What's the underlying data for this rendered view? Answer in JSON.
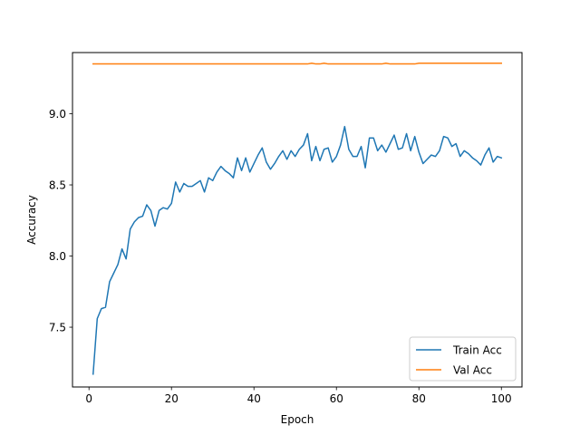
{
  "chart_data": {
    "type": "line",
    "title": "",
    "xlabel": "Epoch",
    "ylabel": "Accuracy",
    "xlim": [
      -4,
      105
    ],
    "ylim": [
      7.08,
      9.43
    ],
    "xticks": [
      0,
      20,
      40,
      60,
      80,
      100
    ],
    "yticks": [
      7.5,
      8.0,
      8.5,
      9.0
    ],
    "ytick_labels": [
      "7.5",
      "8.0",
      "8.5",
      "9.0"
    ],
    "grid": false,
    "legend_position": "lower-right",
    "x": [
      1,
      2,
      3,
      4,
      5,
      6,
      7,
      8,
      9,
      10,
      11,
      12,
      13,
      14,
      15,
      16,
      17,
      18,
      19,
      20,
      21,
      22,
      23,
      24,
      25,
      26,
      27,
      28,
      29,
      30,
      31,
      32,
      33,
      34,
      35,
      36,
      37,
      38,
      39,
      40,
      41,
      42,
      43,
      44,
      45,
      46,
      47,
      48,
      49,
      50,
      51,
      52,
      53,
      54,
      55,
      56,
      57,
      58,
      59,
      60,
      61,
      62,
      63,
      64,
      65,
      66,
      67,
      68,
      69,
      70,
      71,
      72,
      73,
      74,
      75,
      76,
      77,
      78,
      79,
      80,
      81,
      82,
      83,
      84,
      85,
      86,
      87,
      88,
      89,
      90,
      91,
      92,
      93,
      94,
      95,
      96,
      97,
      98,
      99,
      100
    ],
    "series": [
      {
        "name": "Train Acc",
        "color": "#1f77b4",
        "values": [
          7.17,
          7.56,
          7.63,
          7.64,
          7.82,
          7.88,
          7.94,
          8.05,
          7.98,
          8.19,
          8.24,
          8.27,
          8.28,
          8.36,
          8.32,
          8.21,
          8.32,
          8.34,
          8.33,
          8.37,
          8.52,
          8.45,
          8.51,
          8.49,
          8.49,
          8.51,
          8.53,
          8.45,
          8.55,
          8.53,
          8.59,
          8.63,
          8.6,
          8.58,
          8.55,
          8.69,
          8.6,
          8.69,
          8.59,
          8.65,
          8.71,
          8.76,
          8.66,
          8.61,
          8.65,
          8.7,
          8.74,
          8.68,
          8.74,
          8.7,
          8.75,
          8.78,
          8.86,
          8.67,
          8.77,
          8.67,
          8.75,
          8.76,
          8.66,
          8.7,
          8.78,
          8.91,
          8.75,
          8.7,
          8.7,
          8.77,
          8.62,
          8.83,
          8.83,
          8.74,
          8.78,
          8.73,
          8.79,
          8.85,
          8.75,
          8.76,
          8.86,
          8.74,
          8.84,
          8.73,
          8.65,
          8.68,
          8.71,
          8.7,
          8.74,
          8.84,
          8.83,
          8.77,
          8.79,
          8.7,
          8.74,
          8.72,
          8.69,
          8.67,
          8.64,
          8.71,
          8.76,
          8.66,
          8.7,
          8.69
        ]
      },
      {
        "name": "Val Acc",
        "color": "#ff7f0e",
        "values": [
          9.35,
          9.35,
          9.35,
          9.35,
          9.35,
          9.35,
          9.35,
          9.35,
          9.35,
          9.35,
          9.35,
          9.35,
          9.35,
          9.35,
          9.35,
          9.35,
          9.35,
          9.35,
          9.35,
          9.35,
          9.35,
          9.35,
          9.35,
          9.35,
          9.35,
          9.35,
          9.35,
          9.35,
          9.35,
          9.35,
          9.35,
          9.35,
          9.35,
          9.35,
          9.35,
          9.35,
          9.35,
          9.35,
          9.35,
          9.35,
          9.35,
          9.35,
          9.35,
          9.35,
          9.35,
          9.35,
          9.35,
          9.35,
          9.35,
          9.35,
          9.35,
          9.35,
          9.35,
          9.355,
          9.35,
          9.35,
          9.355,
          9.35,
          9.35,
          9.35,
          9.35,
          9.35,
          9.35,
          9.35,
          9.35,
          9.35,
          9.35,
          9.35,
          9.35,
          9.35,
          9.35,
          9.355,
          9.35,
          9.35,
          9.35,
          9.35,
          9.35,
          9.35,
          9.35,
          9.355,
          9.355,
          9.355,
          9.355,
          9.355,
          9.355,
          9.355,
          9.355,
          9.355,
          9.355,
          9.355,
          9.355,
          9.355,
          9.355,
          9.355,
          9.355,
          9.355,
          9.355,
          9.355,
          9.355,
          9.355
        ]
      }
    ]
  }
}
